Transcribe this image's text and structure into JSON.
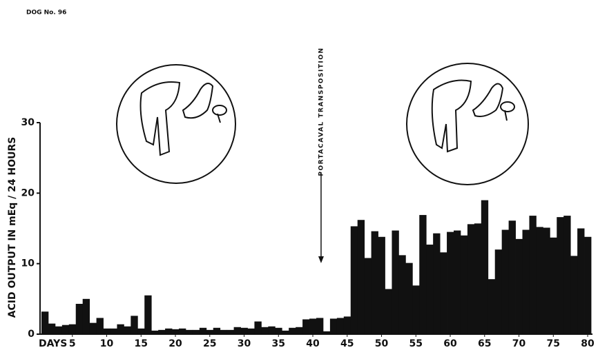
{
  "chart_data": {
    "type": "bar",
    "title": "DOG No. 96",
    "y_label": "ACID OUTPUT IN mEq / 24 HOURS",
    "x_label": "DAYS",
    "annotation": {
      "text": "PORTACAVAL TRANSPOSITION",
      "x": 41.2
    },
    "x": [
      1,
      2,
      3,
      4,
      5,
      6,
      7,
      8,
      9,
      10,
      11,
      12,
      13,
      14,
      15,
      16,
      17,
      18,
      19,
      20,
      21,
      22,
      23,
      24,
      25,
      26,
      27,
      28,
      29,
      30,
      31,
      32,
      33,
      34,
      35,
      36,
      37,
      38,
      39,
      40,
      41,
      42,
      43,
      44,
      45,
      46,
      47,
      48,
      49,
      50,
      51,
      52,
      53,
      54,
      55,
      56,
      57,
      58,
      59,
      60,
      61,
      62,
      63,
      64,
      65,
      66,
      67,
      68,
      69,
      70,
      71,
      72,
      73,
      74,
      75,
      76,
      77,
      78,
      79,
      80
    ],
    "values": [
      3.2,
      1.5,
      1.1,
      1.3,
      1.4,
      4.3,
      5.0,
      1.6,
      2.3,
      0.8,
      0.8,
      1.4,
      1.1,
      2.6,
      0.8,
      5.5,
      0.5,
      0.6,
      0.8,
      0.7,
      0.8,
      0.6,
      0.6,
      0.9,
      0.6,
      0.9,
      0.6,
      0.6,
      1.0,
      0.9,
      0.8,
      1.8,
      1.0,
      1.1,
      0.9,
      0.5,
      0.9,
      1.0,
      2.1,
      2.2,
      2.3,
      0.4,
      2.2,
      2.3,
      2.5,
      15.3,
      16.2,
      10.8,
      14.6,
      13.8,
      6.4,
      14.7,
      11.2,
      10.1,
      6.9,
      16.9,
      12.7,
      14.3,
      11.6,
      14.5,
      14.7,
      14.0,
      15.6,
      15.7,
      19.0,
      7.8,
      12.0,
      14.8,
      16.1,
      13.5,
      14.8,
      16.8,
      15.2,
      15.1,
      13.7,
      16.6,
      16.8,
      11.1,
      15.0,
      13.8
    ],
    "color": "#111111",
    "xlim": [
      0.3,
      80.7
    ],
    "xticks": [
      5,
      10,
      15,
      20,
      25,
      30,
      35,
      40,
      45,
      50,
      55,
      60,
      65,
      70,
      75,
      80
    ],
    "ylim": [
      0,
      30
    ],
    "yticks": [
      0,
      10,
      20,
      30
    ],
    "grid": false
  }
}
